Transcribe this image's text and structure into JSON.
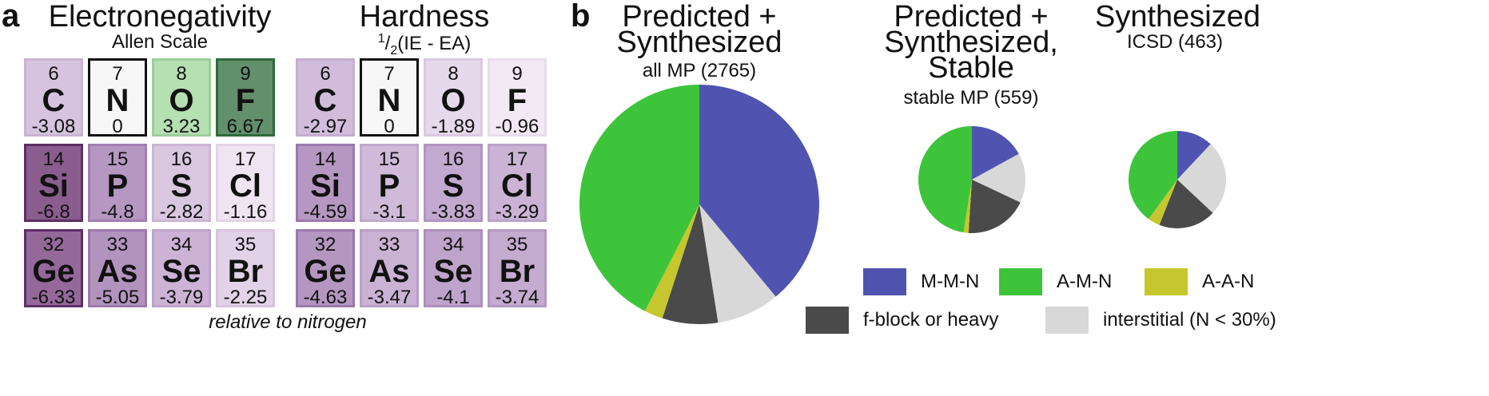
{
  "panel_a": {
    "letter": "a",
    "caption": "relative to nitrogen",
    "tables": [
      {
        "title": "Electronegativity",
        "subtitle": "Allen Scale",
        "cells": [
          {
            "num": "6",
            "sym": "C",
            "val": "-3.08",
            "bg": "#d6c3de",
            "border": "#c9b3d4",
            "text": "#111"
          },
          {
            "num": "7",
            "sym": "N",
            "val": "0",
            "bg": "#f7f7f7",
            "border": "#111111",
            "text": "#111"
          },
          {
            "num": "8",
            "sym": "O",
            "val": "3.23",
            "bg": "#b6dfb2",
            "border": "#9ccf98",
            "text": "#111"
          },
          {
            "num": "9",
            "sym": "F",
            "val": "6.67",
            "bg": "#628f6c",
            "border": "#2f6a3a",
            "text": "#111"
          },
          {
            "num": "14",
            "sym": "Si",
            "val": "-6.8",
            "bg": "#8a5d8e",
            "border": "#5b2f60",
            "text": "#111"
          },
          {
            "num": "15",
            "sym": "P",
            "val": "-4.8",
            "bg": "#b597c2",
            "border": "#a27eb0",
            "text": "#111"
          },
          {
            "num": "16",
            "sym": "S",
            "val": "-2.82",
            "bg": "#d9c7df",
            "border": "#cbb5d3",
            "text": "#111"
          },
          {
            "num": "17",
            "sym": "Cl",
            "val": "-1.16",
            "bg": "#efe4f2",
            "border": "#e3d4e8",
            "text": "#111"
          },
          {
            "num": "32",
            "sym": "Ge",
            "val": "-6.33",
            "bg": "#94699a",
            "border": "#5e3064",
            "text": "#111"
          },
          {
            "num": "33",
            "sym": "As",
            "val": "-5.05",
            "bg": "#b293be",
            "border": "#9d79ab",
            "text": "#111"
          },
          {
            "num": "34",
            "sym": "Se",
            "val": "-3.79",
            "bg": "#ccb3d6",
            "border": "#bfa3ca",
            "text": "#111"
          },
          {
            "num": "35",
            "sym": "Br",
            "val": "-2.25",
            "bg": "#e2d2e8",
            "border": "#d6c3de",
            "text": "#111"
          }
        ]
      },
      {
        "title": "Hardness",
        "subtitle_sup": "1",
        "subtitle_sub": "2",
        "subtitle_rest": "(IE - EA)",
        "cells": [
          {
            "num": "6",
            "sym": "C",
            "val": "-2.97",
            "bg": "#d1bddb",
            "border": "#c4aed0",
            "text": "#111"
          },
          {
            "num": "7",
            "sym": "N",
            "val": "0",
            "bg": "#f7f7f7",
            "border": "#111111",
            "text": "#111"
          },
          {
            "num": "8",
            "sym": "O",
            "val": "-1.89",
            "bg": "#e6d9eb",
            "border": "#dac9e1",
            "text": "#111"
          },
          {
            "num": "9",
            "sym": "F",
            "val": "-0.96",
            "bg": "#f2e9f4",
            "border": "#e8dcec",
            "text": "#111"
          },
          {
            "num": "14",
            "sym": "Si",
            "val": "-4.59",
            "bg": "#b597c1",
            "border": "#9c7aac",
            "text": "#111"
          },
          {
            "num": "15",
            "sym": "P",
            "val": "-3.1",
            "bg": "#cfbbd9",
            "border": "#c1a9cd",
            "text": "#111"
          },
          {
            "num": "16",
            "sym": "S",
            "val": "-3.83",
            "bg": "#c2a9cf",
            "border": "#b194c0",
            "text": "#111"
          },
          {
            "num": "17",
            "sym": "Cl",
            "val": "-3.29",
            "bg": "#cab3d5",
            "border": "#bba2c8",
            "text": "#111"
          },
          {
            "num": "32",
            "sym": "Ge",
            "val": "-4.63",
            "bg": "#b496c1",
            "border": "#9a79aa",
            "text": "#111"
          },
          {
            "num": "33",
            "sym": "As",
            "val": "-3.47",
            "bg": "#c9b2d4",
            "border": "#b9a0c7",
            "text": "#111"
          },
          {
            "num": "34",
            "sym": "Se",
            "val": "-4.1",
            "bg": "#bea3cb",
            "border": "#ad8fbd",
            "text": "#111"
          },
          {
            "num": "35",
            "sym": "Br",
            "val": "-3.74",
            "bg": "#c4abd0",
            "border": "#b498c2",
            "text": "#111"
          }
        ]
      }
    ]
  },
  "panel_b": {
    "letter": "b",
    "legend": [
      {
        "label": "M-M-N",
        "color": "#5054b0"
      },
      {
        "label": "A-M-N",
        "color": "#3dc43a"
      },
      {
        "label": "A-A-N",
        "color": "#c6c62e"
      },
      {
        "label": "f-block or heavy",
        "color": "#4a4a4a"
      },
      {
        "label": "interstitial (N < 30%)",
        "color": "#d8d8d8"
      }
    ]
  },
  "chart_data": [
    {
      "type": "pie",
      "title": "Predicted +\nSynthesized",
      "subtitle": "all MP (2765)",
      "series": [
        {
          "name": "M-M-N",
          "value": 0.39,
          "color": "#5054b0"
        },
        {
          "name": "interstitial (N < 30%)",
          "value": 0.085,
          "color": "#d8d8d8"
        },
        {
          "name": "f-block or heavy",
          "value": 0.075,
          "color": "#4a4a4a"
        },
        {
          "name": "A-A-N",
          "value": 0.025,
          "color": "#c6c62e"
        },
        {
          "name": "A-M-N",
          "value": 0.425,
          "color": "#3dc43a"
        }
      ]
    },
    {
      "type": "pie",
      "title": "Predicted +\nSynthesized,\nStable",
      "subtitle": "stable MP (559)",
      "series": [
        {
          "name": "M-M-N",
          "value": 0.17,
          "color": "#5054b0"
        },
        {
          "name": "interstitial (N < 30%)",
          "value": 0.15,
          "color": "#d8d8d8"
        },
        {
          "name": "f-block or heavy",
          "value": 0.19,
          "color": "#4a4a4a"
        },
        {
          "name": "A-A-N",
          "value": 0.015,
          "color": "#c6c62e"
        },
        {
          "name": "A-M-N",
          "value": 0.475,
          "color": "#3dc43a"
        }
      ]
    },
    {
      "type": "pie",
      "title": "Synthesized",
      "subtitle": "ICSD (463)",
      "series": [
        {
          "name": "M-M-N",
          "value": 0.12,
          "color": "#5054b0"
        },
        {
          "name": "interstitial (N < 30%)",
          "value": 0.25,
          "color": "#d8d8d8"
        },
        {
          "name": "f-block or heavy",
          "value": 0.19,
          "color": "#4a4a4a"
        },
        {
          "name": "A-A-N",
          "value": 0.04,
          "color": "#c6c62e"
        },
        {
          "name": "A-M-N",
          "value": 0.4,
          "color": "#3dc43a"
        }
      ]
    }
  ]
}
